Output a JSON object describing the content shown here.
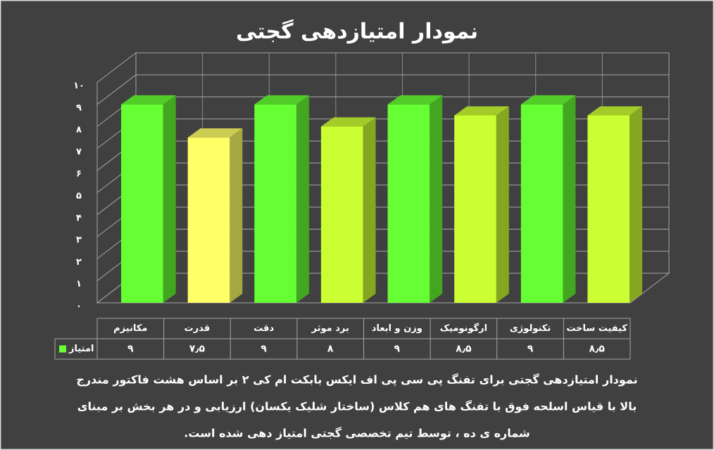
{
  "chart_data": {
    "type": "bar3d",
    "title": "نمودار امتیازدهی گجتی",
    "categories": [
      "مکانیزم",
      "قدرت",
      "دقت",
      "برد موثر",
      "وزن و ابعاد",
      "ارگونومیک",
      "تکنولوژی",
      "کیفیت ساخت"
    ],
    "series": [
      {
        "name": "امتیاز",
        "color": "#66ff33",
        "values": [
          9,
          7.5,
          9,
          8,
          9,
          8.5,
          9,
          8.5
        ],
        "value_labels": [
          "۹",
          "۷٫۵",
          "۹",
          "۸",
          "۹",
          "۸٫۵",
          "۹",
          "۸٫۵"
        ]
      }
    ],
    "bar_colors": [
      "#66ff33",
      "#ffff66",
      "#66ff33",
      "#ccff33",
      "#66ff33",
      "#ccff33",
      "#66ff33",
      "#ccff33"
    ],
    "ylim": [
      0,
      10
    ],
    "yticks": [
      {
        "value": 0,
        "label": "۰"
      },
      {
        "value": 1,
        "label": "۱"
      },
      {
        "value": 2,
        "label": "۲"
      },
      {
        "value": 3,
        "label": "۳"
      },
      {
        "value": 4,
        "label": "۴"
      },
      {
        "value": 5,
        "label": "۵"
      },
      {
        "value": 6,
        "label": "۶"
      },
      {
        "value": 7,
        "label": "۷"
      },
      {
        "value": 8,
        "label": "۸"
      },
      {
        "value": 9,
        "label": "۹"
      },
      {
        "value": 10,
        "label": "۱۰"
      }
    ],
    "grid": true,
    "caption": [
      "نمودار امتیازدهی گجتی برای تفنگ پی سی پی اف ایکس بابکت ام کی ۲ بر اساس هشت فاکتور مندرج",
      "بالا با قیاس اسلحه فوق با تفنگ های هم کلاس (ساختار شلیک یکسان) ارزیابی و در هر بخش بر مبنای",
      "شماره ی ده ، توسط تیم تخصصی گجتی امتیاز دهی شده است."
    ]
  }
}
